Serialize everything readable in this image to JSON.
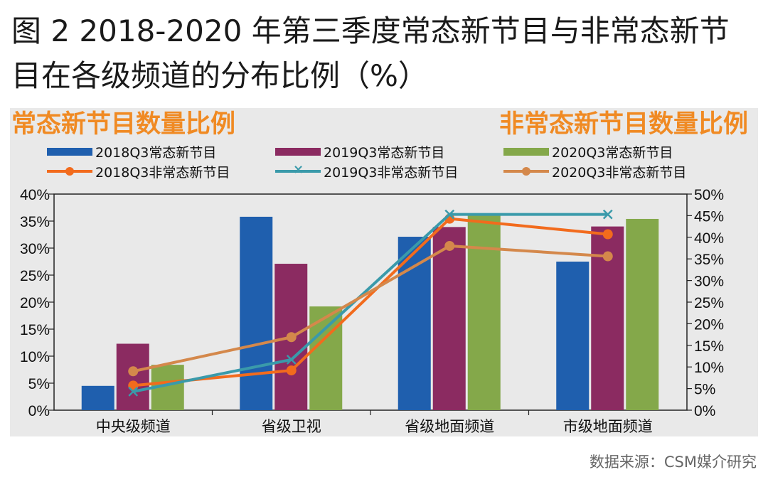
{
  "figure": {
    "title": "图 2  2018-2020 年第三季度常态新节目与非常态新节目在各级频道的分布比例（%）",
    "left_panel_title": "常态新节目数量比例",
    "right_panel_title": "非常态新节目数量比例",
    "source": "数据来源：CSM媒介研究"
  },
  "chart_data": {
    "type": "bar",
    "categories": [
      "中央级频道",
      "省级卫视",
      "省级地面频道",
      "市级地面频道"
    ],
    "series": [
      {
        "name": "2018Q3常态新节目",
        "kind": "bar",
        "axis": "left",
        "color": "#1f5fae",
        "values": [
          4.5,
          35.8,
          32.1,
          27.5
        ]
      },
      {
        "name": "2019Q3常态新节目",
        "kind": "bar",
        "axis": "left",
        "color": "#8b2b61",
        "values": [
          12.3,
          27.1,
          33.9,
          34.0
        ]
      },
      {
        "name": "2020Q3常态新节目",
        "kind": "bar",
        "axis": "left",
        "color": "#84a84a",
        "values": [
          8.4,
          19.2,
          36.0,
          35.4
        ]
      },
      {
        "name": "2018Q3非常态新节目",
        "kind": "line",
        "axis": "right",
        "color": "#f26b1d",
        "marker": "circle",
        "values": [
          5.7,
          9.2,
          44.3,
          40.7
        ]
      },
      {
        "name": "2019Q3非常态新节目",
        "kind": "line",
        "axis": "right",
        "color": "#3a9aaa",
        "marker": "x",
        "values": [
          4.3,
          11.7,
          45.3,
          45.3
        ]
      },
      {
        "name": "2020Q3非常态新节目",
        "kind": "line",
        "axis": "right",
        "color": "#d4884b",
        "marker": "circle",
        "values": [
          9.0,
          16.9,
          38.0,
          35.6
        ]
      }
    ],
    "y_left": {
      "min": 0,
      "max": 40,
      "step": 5,
      "tick_labels": [
        "0%",
        "5%",
        "10%",
        "15%",
        "20%",
        "25%",
        "30%",
        "35%",
        "40%"
      ]
    },
    "y_right": {
      "min": 0,
      "max": 50,
      "step": 5,
      "tick_labels": [
        "0%",
        "5%",
        "10%",
        "15%",
        "20%",
        "25%",
        "30%",
        "35%",
        "40%",
        "45%",
        "50%"
      ]
    },
    "grid": false,
    "legend_position": "top"
  }
}
